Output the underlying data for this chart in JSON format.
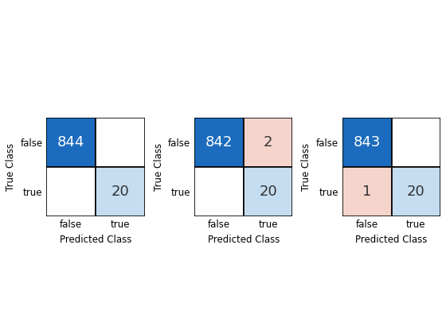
{
  "matrices": [
    [
      [
        844,
        0
      ],
      [
        0,
        20
      ]
    ],
    [
      [
        842,
        2
      ],
      [
        0,
        20
      ]
    ],
    [
      [
        843,
        0
      ],
      [
        1,
        20
      ]
    ]
  ],
  "colors": {
    "true_negative": "#1B6BBE",
    "true_positive": "#C5DDF0",
    "false_positive": "#F5D5CB",
    "false_negative": "#F5D5CB",
    "zero_off_diag": "#FFFFFF"
  },
  "xlabel": "Predicted Class",
  "ylabel": "True Class",
  "tick_labels": [
    "false",
    "true"
  ],
  "text_color_white": "#FFFFFF",
  "text_color_dark": "#333333",
  "fontsize_number": 13,
  "fontsize_label": 8.5,
  "figsize": [
    5.6,
    4.2
  ],
  "dpi": 100
}
